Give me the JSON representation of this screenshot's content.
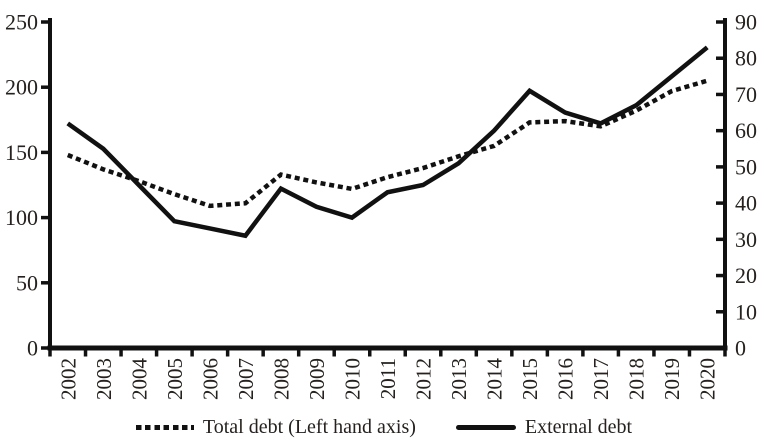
{
  "chart_data": {
    "type": "line",
    "title": "",
    "categories": [
      "2002",
      "2003",
      "2004",
      "2005",
      "2006",
      "2007",
      "2008",
      "2009",
      "2010",
      "2011",
      "2012",
      "2013",
      "2014",
      "2015",
      "2016",
      "2017",
      "2018",
      "2019",
      "2020"
    ],
    "series": [
      {
        "name": "Total debt (Left hand axis)",
        "axis": "left",
        "line_style": "dotted",
        "color": "#111111",
        "values": [
          148,
          137,
          128,
          118,
          109,
          111,
          133,
          127,
          122,
          131,
          138,
          147,
          155,
          173,
          174,
          170,
          182,
          197,
          205
        ]
      },
      {
        "name": "External debt",
        "axis": "right",
        "line_style": "solid",
        "color": "#111111",
        "values": [
          62,
          55,
          45,
          35,
          33,
          31,
          44,
          39,
          36,
          43,
          45,
          51,
          60,
          71,
          65,
          62,
          67,
          75,
          83
        ]
      }
    ],
    "left_axis": {
      "range": [
        0,
        250
      ],
      "ticks": [
        0,
        50,
        100,
        150,
        200,
        250
      ]
    },
    "right_axis": {
      "range": [
        0,
        90
      ],
      "ticks": [
        0,
        10,
        20,
        30,
        40,
        50,
        60,
        70,
        80,
        90
      ]
    },
    "grid": false,
    "legend_position": "bottom",
    "colors": {
      "line": "#111111",
      "text": "#26211e",
      "background": "#ffffff"
    }
  }
}
